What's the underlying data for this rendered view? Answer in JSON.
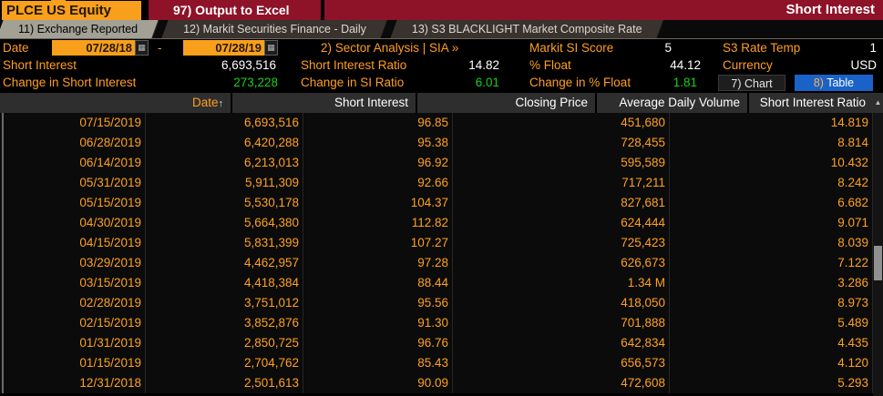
{
  "colors": {
    "amber": "#ff9e21",
    "data_orange": "#ffa11e",
    "value_white": "#ffffff",
    "change_green": "#17d117",
    "title_bar_red": "#8e1228",
    "ticker_orange": "#f8a01c",
    "selected_blue": "#1b62c8",
    "active_tab_gray": "#a3a095"
  },
  "title_bar": {
    "ticker": "PLCE US Equity",
    "output_button": "97) Output to Excel",
    "screen_title": "Short Interest"
  },
  "tabs": [
    {
      "label": "11) Exchange Reported",
      "active": true
    },
    {
      "label": "12) Markit Securities Finance - Daily",
      "active": false
    },
    {
      "label": "13) S3 BLACKLIGHT Market Composite Rate",
      "active": false
    }
  ],
  "filters": {
    "date_label": "Date",
    "date_from": "07/28/18",
    "date_range_separator": "-",
    "date_to": "07/28/19",
    "sector_link": "2) Sector Analysis | SIA »"
  },
  "stats": {
    "markit_si_score": {
      "label": "Markit SI Score",
      "value": "5"
    },
    "s3_rate_temp": {
      "label": "S3 Rate Temp",
      "value": "1"
    },
    "short_interest": {
      "label": "Short Interest",
      "value": "6,693,516"
    },
    "short_interest_ratio": {
      "label": "Short Interest Ratio",
      "value": "14.82"
    },
    "pct_float": {
      "label": "% Float",
      "value": "44.12"
    },
    "currency": {
      "label": "Currency",
      "value": "USD"
    },
    "change_short_interest": {
      "label": "Change in Short Interest",
      "value": "273,228"
    },
    "change_si_ratio": {
      "label": "Change in SI Ratio",
      "value": "6.01"
    },
    "change_pct_float": {
      "label": "Change in % Float",
      "value": "1.81"
    }
  },
  "view_buttons": {
    "chart_label": "7) Chart",
    "table_num": "8)",
    "table_label": "Table",
    "selected": "table"
  },
  "icons": {
    "calendar": "▦",
    "date_sort_arrow": "↑",
    "scroll_up_arrow": "▲"
  },
  "table": {
    "headers": [
      "Date",
      "Short Interest",
      "Closing Price",
      "Average Daily Volume",
      "Short Interest Ratio"
    ],
    "rows": [
      {
        "date": "07/15/2019",
        "short_interest": "6,693,516",
        "closing_price": "96.85",
        "avg_daily_volume": "451,680",
        "short_interest_ratio": "14.819"
      },
      {
        "date": "06/28/2019",
        "short_interest": "6,420,288",
        "closing_price": "95.38",
        "avg_daily_volume": "728,455",
        "short_interest_ratio": "8.814"
      },
      {
        "date": "06/14/2019",
        "short_interest": "6,213,013",
        "closing_price": "96.92",
        "avg_daily_volume": "595,589",
        "short_interest_ratio": "10.432"
      },
      {
        "date": "05/31/2019",
        "short_interest": "5,911,309",
        "closing_price": "92.66",
        "avg_daily_volume": "717,211",
        "short_interest_ratio": "8.242"
      },
      {
        "date": "05/15/2019",
        "short_interest": "5,530,178",
        "closing_price": "104.37",
        "avg_daily_volume": "827,681",
        "short_interest_ratio": "6.682"
      },
      {
        "date": "04/30/2019",
        "short_interest": "5,664,380",
        "closing_price": "112.82",
        "avg_daily_volume": "624,444",
        "short_interest_ratio": "9.071"
      },
      {
        "date": "04/15/2019",
        "short_interest": "5,831,399",
        "closing_price": "107.27",
        "avg_daily_volume": "725,423",
        "short_interest_ratio": "8.039"
      },
      {
        "date": "03/29/2019",
        "short_interest": "4,462,957",
        "closing_price": "97.28",
        "avg_daily_volume": "626,673",
        "short_interest_ratio": "7.122"
      },
      {
        "date": "03/15/2019",
        "short_interest": "4,418,384",
        "closing_price": "88.44",
        "avg_daily_volume": "1.34 M",
        "short_interest_ratio": "3.286"
      },
      {
        "date": "02/28/2019",
        "short_interest": "3,751,012",
        "closing_price": "95.56",
        "avg_daily_volume": "418,050",
        "short_interest_ratio": "8.973"
      },
      {
        "date": "02/15/2019",
        "short_interest": "3,852,876",
        "closing_price": "91.30",
        "avg_daily_volume": "701,888",
        "short_interest_ratio": "5.489"
      },
      {
        "date": "01/31/2019",
        "short_interest": "2,850,725",
        "closing_price": "96.76",
        "avg_daily_volume": "642,834",
        "short_interest_ratio": "4.435"
      },
      {
        "date": "01/15/2019",
        "short_interest": "2,704,762",
        "closing_price": "85.43",
        "avg_daily_volume": "656,573",
        "short_interest_ratio": "4.120"
      },
      {
        "date": "12/31/2018",
        "short_interest": "2,501,613",
        "closing_price": "90.09",
        "avg_daily_volume": "472,608",
        "short_interest_ratio": "5.293"
      }
    ]
  }
}
